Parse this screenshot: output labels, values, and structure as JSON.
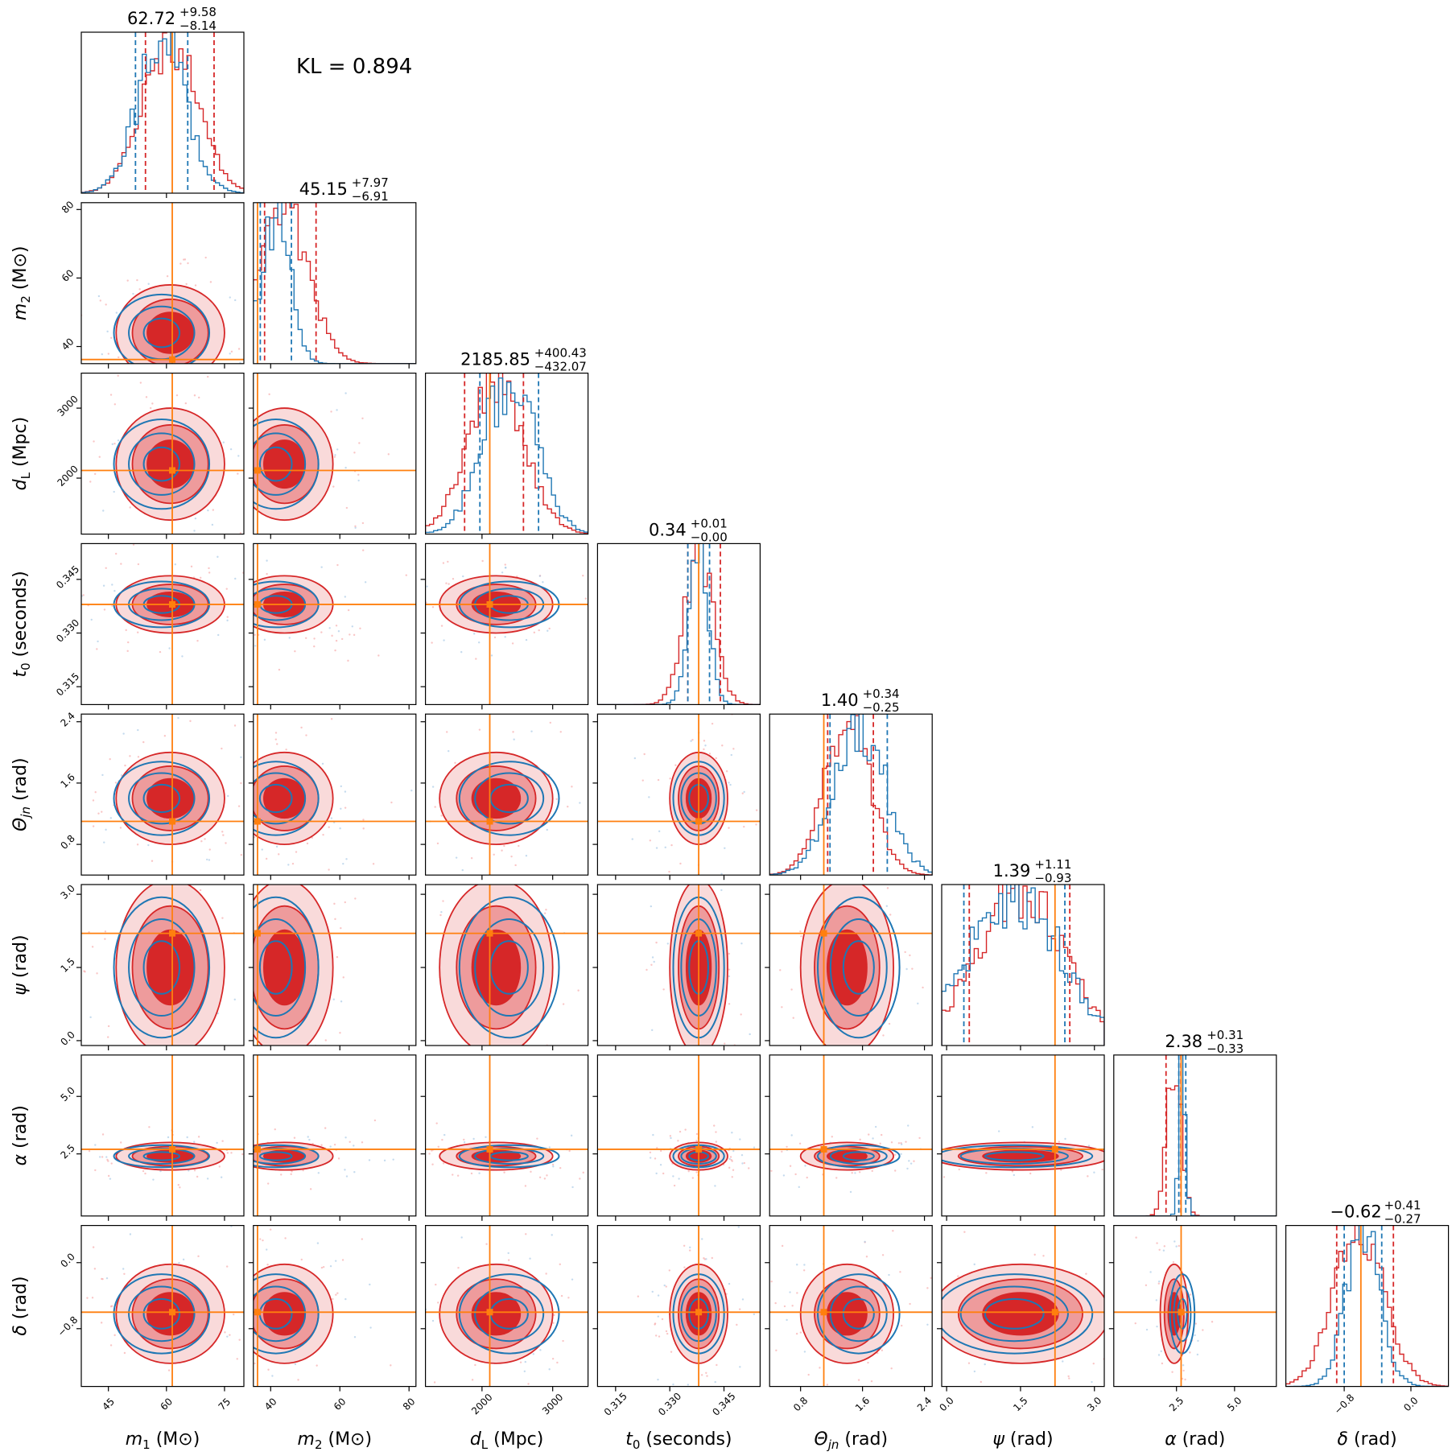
{
  "kl_text": "KL = 0.894",
  "colors": {
    "posterior_a": "#d62728",
    "posterior_b": "#1f77b4",
    "truth": "#ff7f0e"
  },
  "chart_data": {
    "type": "corner",
    "parameters": [
      {
        "key": "m1",
        "label_main": "m",
        "label_sub": "1",
        "label_unit": " (M⊙)",
        "range": [
          38,
          80
        ],
        "ticks": [
          45,
          60,
          75
        ],
        "tick_labels": [
          "45",
          "60",
          "75"
        ],
        "truth": 61.5,
        "title_val": "62.72",
        "title_plus": "+9.58",
        "title_minus": "−8.14",
        "median": 62.72,
        "plus": 9.58,
        "minus": 8.14,
        "b_q": [
          52.0,
          65.5
        ],
        "hist_mean": 61,
        "hist_sd": 7
      },
      {
        "key": "m2",
        "label_main": "m",
        "label_sub": "2",
        "label_unit": " (M⊙)",
        "range": [
          35,
          82
        ],
        "ticks": [
          40,
          60,
          80
        ],
        "tick_labels": [
          "40",
          "60",
          "80"
        ],
        "truth": 36.2,
        "title_val": "45.15",
        "title_plus": "+7.97",
        "title_minus": "−6.91",
        "median": 45.15,
        "plus": 7.97,
        "minus": 6.91,
        "b_q": [
          37.0,
          46.0
        ],
        "hist_mean": 44,
        "hist_sd": 7
      },
      {
        "key": "dL",
        "label_main": "d",
        "label_sub": "L",
        "label_unit": " (Mpc)",
        "range": [
          1200,
          3500
        ],
        "ticks": [
          2000,
          3000
        ],
        "tick_labels": [
          "2000",
          "3000"
        ],
        "truth": 2110,
        "title_val": "2185.85",
        "title_plus": "+400.43",
        "title_minus": "−432.07",
        "median": 2185.85,
        "plus": 400.43,
        "minus": 432.07,
        "b_q": [
          1970,
          2800
        ],
        "hist_mean": 2200,
        "hist_sd": 400
      },
      {
        "key": "t0",
        "label_main": "t",
        "label_sub": "0",
        "label_unit": " (seconds)",
        "range": [
          0.31,
          0.355
        ],
        "ticks": [
          0.315,
          0.33,
          0.345
        ],
        "tick_labels": [
          "0.315",
          "0.330",
          "0.345"
        ],
        "truth": 0.338,
        "title_val": "0.34",
        "title_plus": "+0.01",
        "title_minus": "−0.00",
        "median": 0.338,
        "plus": 0.006,
        "minus": 0.003,
        "b_q": [
          0.335,
          0.341
        ],
        "hist_mean": 0.338,
        "hist_sd": 0.004
      },
      {
        "key": "theta",
        "label_main": "Θ",
        "label_sub": "jn",
        "label_unit": " (rad)",
        "range": [
          0.4,
          2.5
        ],
        "ticks": [
          0.8,
          1.6,
          2.4
        ],
        "tick_labels": [
          "0.8",
          "1.6",
          "2.4"
        ],
        "truth": 1.1,
        "title_val": "1.40",
        "title_plus": "+0.34",
        "title_minus": "−0.25",
        "median": 1.4,
        "plus": 0.34,
        "minus": 0.25,
        "b_q": [
          1.18,
          1.92
        ],
        "hist_mean": 1.4,
        "hist_sd": 0.3
      },
      {
        "key": "psi",
        "label_main": "ψ",
        "label_sub": "",
        "label_unit": " (rad)",
        "range": [
          -0.1,
          3.2
        ],
        "ticks": [
          0.0,
          1.5,
          3.0
        ],
        "tick_labels": [
          "0.0",
          "1.5",
          "3.0"
        ],
        "truth": 2.2,
        "title_val": "1.39",
        "title_plus": "+1.11",
        "title_minus": "−0.93",
        "median": 1.39,
        "plus": 1.11,
        "minus": 0.93,
        "b_q": [
          0.35,
          2.4
        ],
        "hist_mean": 1.5,
        "hist_sd": 0.9
      },
      {
        "key": "alpha",
        "label_main": "α",
        "label_sub": "",
        "label_unit": " (rad)",
        "range": [
          -0.2,
          6.8
        ],
        "ticks": [
          2.5,
          5.0
        ],
        "tick_labels": [
          "2.5",
          "5.0"
        ],
        "truth": 2.7,
        "title_val": "2.38",
        "title_plus": "+0.31",
        "title_minus": "−0.33",
        "median": 2.38,
        "plus": 0.31,
        "minus": 0.33,
        "b_q": [
          2.6,
          2.9
        ],
        "hist_mean": 2.4,
        "hist_sd": 0.3
      },
      {
        "key": "delta",
        "label_main": "δ",
        "label_sub": "",
        "label_unit": " (rad)",
        "range": [
          -1.5,
          0.45
        ],
        "ticks": [
          -0.8,
          0.0
        ],
        "tick_labels": [
          "−0.8",
          "0.0"
        ],
        "truth": -0.6,
        "title_val": "−0.62",
        "title_plus": "+0.41",
        "title_minus": "−0.27",
        "median": -0.62,
        "plus": 0.41,
        "minus": 0.27,
        "b_q": [
          -0.8,
          -0.35
        ],
        "hist_mean": -0.62,
        "hist_sd": 0.3
      }
    ],
    "diag_ticks_hidden": false,
    "ylim": [
      0,
      1
    ]
  }
}
